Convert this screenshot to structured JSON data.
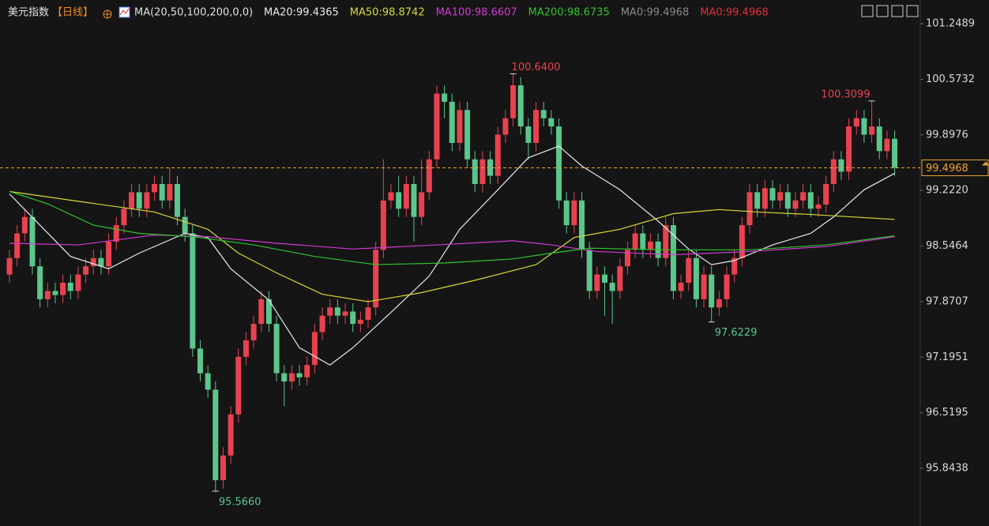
{
  "chart_data": {
    "type": "candlestick",
    "title": "美元指数",
    "period": "【日线】",
    "ma_params": "MA(20,50,100,200,0,0)",
    "legend": [
      {
        "label": "MA20:99.4365",
        "color": "#e8e8e8"
      },
      {
        "label": "MA50:98.8742",
        "color": "#d8d83a"
      },
      {
        "label": "MA100:98.6607",
        "color": "#d43ad4"
      },
      {
        "label": "MA200:98.6735",
        "color": "#2ec42e"
      },
      {
        "label": "MA0:99.4968",
        "color": "#8a8a8a"
      },
      {
        "label": "MA0:99.4968",
        "color": "#e0303a"
      }
    ],
    "up_color": "#e8424f",
    "down_color": "#5cc68c",
    "ylim": [
      95.143,
      101.537
    ],
    "yticks": [
      {
        "value": 101.2489,
        "label": "101.2489"
      },
      {
        "value": 100.5732,
        "label": "100.5732"
      },
      {
        "value": 99.8976,
        "label": "99.8976"
      },
      {
        "value": 99.222,
        "label": "99.2220"
      },
      {
        "value": 98.5464,
        "label": "98.5464"
      },
      {
        "value": 97.8707,
        "label": "97.8707"
      },
      {
        "value": 97.1951,
        "label": "97.1951"
      },
      {
        "value": 96.5195,
        "label": "96.5195"
      },
      {
        "value": 95.8438,
        "label": "95.8438"
      }
    ],
    "open": [
      98.2,
      98.4,
      98.7,
      98.9,
      98.3,
      97.9,
      98.0,
      97.95,
      98.1,
      98.0,
      98.2,
      98.3,
      98.4,
      98.3,
      98.6,
      98.8,
      99.0,
      99.2,
      99.0,
      99.2,
      99.3,
      99.1,
      99.3,
      98.9,
      98.7,
      97.3,
      97.0,
      96.8,
      95.7,
      96.0,
      96.5,
      97.2,
      97.4,
      97.6,
      97.9,
      97.6,
      97.0,
      96.9,
      97.0,
      96.95,
      97.1,
      97.5,
      97.7,
      97.8,
      97.7,
      97.75,
      97.6,
      97.65,
      97.8,
      98.5,
      99.1,
      99.2,
      99.0,
      99.3,
      98.9,
      99.2,
      99.6,
      100.4,
      100.3,
      99.8,
      100.2,
      99.6,
      99.3,
      99.6,
      99.4,
      99.9,
      100.1,
      100.5,
      100.0,
      99.8,
      100.2,
      100.1,
      100.0,
      99.1,
      98.8,
      99.1,
      98.5,
      98.0,
      98.2,
      98.1,
      98.0,
      98.3,
      98.5,
      98.7,
      98.5,
      98.6,
      98.4,
      98.8,
      98.0,
      98.1,
      98.4,
      97.9,
      98.2,
      97.8,
      97.9,
      98.2,
      98.4,
      98.8,
      99.2,
      99.0,
      99.25,
      99.1,
      99.2,
      99.0,
      99.1,
      99.2,
      99.0,
      99.05,
      99.3,
      99.6,
      99.45,
      100.0,
      100.1,
      99.9,
      100.0,
      99.7,
      99.85
    ],
    "high": [
      98.5,
      98.8,
      99.0,
      99.0,
      98.4,
      98.1,
      98.1,
      98.2,
      98.2,
      98.3,
      98.4,
      98.5,
      98.5,
      98.7,
      98.9,
      99.1,
      99.3,
      99.3,
      99.3,
      99.4,
      99.4,
      99.5,
      99.4,
      99.0,
      98.8,
      97.4,
      97.1,
      96.9,
      96.1,
      96.6,
      97.3,
      97.5,
      97.7,
      98.0,
      98.0,
      97.7,
      97.1,
      97.1,
      97.1,
      97.2,
      97.6,
      97.8,
      97.9,
      97.9,
      97.85,
      97.85,
      97.75,
      97.9,
      98.6,
      99.6,
      99.3,
      99.4,
      99.4,
      99.4,
      99.6,
      99.7,
      100.5,
      100.5,
      100.4,
      100.3,
      100.3,
      99.7,
      99.7,
      99.7,
      100.0,
      100.2,
      100.64,
      100.6,
      100.1,
      100.3,
      100.3,
      100.2,
      100.1,
      99.2,
      99.2,
      99.2,
      98.6,
      98.3,
      98.3,
      98.2,
      98.4,
      98.6,
      98.8,
      98.8,
      98.7,
      98.7,
      98.9,
      98.9,
      98.2,
      98.5,
      98.5,
      98.3,
      98.3,
      98.0,
      98.3,
      98.5,
      98.9,
      99.3,
      99.3,
      99.35,
      99.35,
      99.3,
      99.3,
      99.2,
      99.3,
      99.3,
      99.15,
      99.4,
      99.7,
      99.7,
      100.1,
      100.2,
      100.2,
      100.3099,
      100.1,
      99.95,
      99.95
    ],
    "low": [
      98.1,
      98.3,
      98.6,
      98.2,
      97.8,
      97.8,
      97.85,
      97.85,
      97.9,
      97.9,
      98.1,
      98.2,
      98.2,
      98.2,
      98.5,
      98.7,
      98.9,
      98.9,
      98.9,
      99.1,
      99.0,
      99.0,
      98.8,
      98.6,
      97.2,
      96.9,
      96.7,
      95.566,
      95.6,
      95.9,
      96.4,
      97.1,
      97.3,
      97.5,
      97.5,
      96.9,
      96.6,
      96.8,
      96.85,
      96.85,
      97.0,
      97.4,
      97.6,
      97.6,
      97.6,
      97.5,
      97.5,
      97.55,
      97.7,
      98.4,
      99.0,
      98.9,
      98.9,
      98.6,
      98.8,
      99.1,
      99.5,
      100.1,
      99.7,
      99.7,
      99.5,
      99.2,
      99.2,
      99.3,
      99.3,
      99.8,
      100.0,
      99.9,
      99.6,
      99.7,
      100.0,
      99.9,
      99.0,
      98.7,
      98.7,
      98.4,
      97.9,
      97.9,
      97.7,
      97.6,
      97.9,
      98.2,
      98.4,
      98.4,
      98.4,
      98.3,
      98.3,
      97.9,
      97.9,
      98.0,
      97.8,
      97.8,
      97.6229,
      97.7,
      97.8,
      98.1,
      98.3,
      98.7,
      98.9,
      98.9,
      99.0,
      99.0,
      98.9,
      98.9,
      99.0,
      98.9,
      98.9,
      98.95,
      99.2,
      99.35,
      99.35,
      99.9,
      99.8,
      99.8,
      99.6,
      99.6,
      99.4
    ],
    "close": [
      98.4,
      98.7,
      98.9,
      98.3,
      97.9,
      98.0,
      97.95,
      98.1,
      98.0,
      98.2,
      98.3,
      98.4,
      98.3,
      98.6,
      98.8,
      99.0,
      99.2,
      99.0,
      99.2,
      99.3,
      99.1,
      99.3,
      98.9,
      98.7,
      97.3,
      97.0,
      96.8,
      95.7,
      96.0,
      96.5,
      97.2,
      97.4,
      97.6,
      97.9,
      97.6,
      97.0,
      96.9,
      97.0,
      96.95,
      97.1,
      97.5,
      97.7,
      97.8,
      97.7,
      97.75,
      97.6,
      97.65,
      97.8,
      98.5,
      99.1,
      99.2,
      99.0,
      99.3,
      98.9,
      99.2,
      99.6,
      100.4,
      100.3,
      99.8,
      100.2,
      99.6,
      99.3,
      99.6,
      99.4,
      99.9,
      100.1,
      100.5,
      100.0,
      99.8,
      100.2,
      100.1,
      100.0,
      99.1,
      98.8,
      99.1,
      98.5,
      98.0,
      98.2,
      98.1,
      98.0,
      98.3,
      98.5,
      98.7,
      98.5,
      98.6,
      98.4,
      98.8,
      98.0,
      98.1,
      98.4,
      97.9,
      98.2,
      97.8,
      97.9,
      98.2,
      98.4,
      98.8,
      99.2,
      99.0,
      99.25,
      99.1,
      99.2,
      99.0,
      99.1,
      99.2,
      99.0,
      99.05,
      99.3,
      99.6,
      99.45,
      100.0,
      100.1,
      99.9,
      100.0,
      99.7,
      99.85,
      99.5
    ],
    "series": [
      {
        "name": "MA20",
        "color": "#e8e8e8",
        "x": [
          0,
          4,
          8,
          13,
          17,
          23,
          26,
          29,
          34,
          38,
          42,
          45,
          50,
          55,
          59,
          64,
          68,
          72,
          75,
          80,
          85,
          89,
          92,
          95,
          100,
          105,
          108,
          112,
          116
        ],
        "values": [
          99.18,
          98.8,
          98.42,
          98.27,
          98.46,
          98.7,
          98.65,
          98.27,
          97.89,
          97.31,
          97.1,
          97.31,
          97.74,
          98.18,
          98.75,
          99.23,
          99.62,
          99.76,
          99.52,
          99.23,
          98.85,
          98.51,
          98.32,
          98.37,
          98.56,
          98.7,
          98.9,
          99.23,
          99.43
        ]
      },
      {
        "name": "MA50",
        "color": "#d8d83a",
        "x": [
          0,
          9,
          19,
          26,
          30,
          35,
          41,
          47,
          54,
          61,
          69,
          74,
          80,
          87,
          93,
          98,
          105,
          116
        ],
        "values": [
          99.21,
          99.09,
          98.96,
          98.75,
          98.46,
          98.22,
          97.96,
          97.87,
          97.98,
          98.13,
          98.32,
          98.65,
          98.75,
          98.94,
          98.99,
          98.96,
          98.93,
          98.87
        ]
      },
      {
        "name": "MA100",
        "color": "#d43ad4",
        "x": [
          0,
          9,
          19,
          26,
          35,
          45,
          56,
          66,
          71,
          77,
          87,
          97,
          107,
          116
        ],
        "values": [
          98.58,
          98.56,
          98.68,
          98.66,
          98.58,
          98.51,
          98.56,
          98.61,
          98.56,
          98.48,
          98.44,
          98.48,
          98.54,
          98.66
        ]
      },
      {
        "name": "MA200",
        "color": "#2ec42e",
        "x": [
          0,
          5,
          11,
          17,
          24,
          32,
          40,
          48,
          57,
          66,
          71,
          76,
          87,
          97,
          107,
          116
        ],
        "values": [
          99.21,
          99.06,
          98.8,
          98.7,
          98.66,
          98.56,
          98.42,
          98.32,
          98.34,
          98.39,
          98.46,
          98.52,
          98.5,
          98.5,
          98.56,
          98.67
        ]
      }
    ],
    "annotations": [
      {
        "index": 66,
        "value": 100.64,
        "label": "100.6400",
        "color": "#e8424f"
      },
      {
        "index": 113,
        "value": 100.3099,
        "label": "100.3099",
        "color": "#e8424f"
      },
      {
        "index": 27,
        "value": 95.566,
        "label": "95.5660",
        "color": "#5cc68c"
      },
      {
        "index": 92,
        "value": 97.6229,
        "label": "97.6229",
        "color": "#5cc68c"
      }
    ],
    "last_price": {
      "value": 99.4968,
      "label": "99.4968",
      "color": "#f0a030"
    }
  }
}
